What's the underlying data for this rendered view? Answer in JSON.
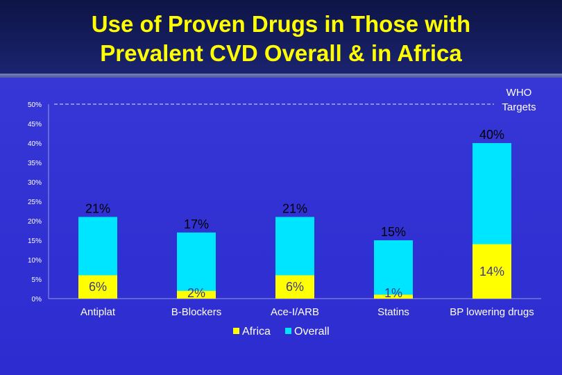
{
  "title_line1": "Use of Proven Drugs in Those with",
  "title_line2": "Prevalent CVD Overall & in Africa",
  "colors": {
    "overall": "#00e5ff",
    "africa": "#ffff00",
    "target": "#e0e0ff"
  },
  "chart_data": {
    "type": "bar",
    "title": "Use of Proven Drugs in Those with Prevalent CVD Overall & in Africa",
    "categories": [
      "Antiplat",
      "B-Blockers",
      "Ace-I/ARB",
      "Statins",
      "BP lowering drugs"
    ],
    "series": [
      {
        "name": "Africa",
        "values": [
          6,
          2,
          6,
          1,
          14
        ],
        "labels": [
          "6%",
          "2%",
          "6%",
          "1%",
          "14%"
        ]
      },
      {
        "name": "Overall",
        "values": [
          21,
          17,
          21,
          15,
          40
        ],
        "labels": [
          "21%",
          "17%",
          "21%",
          "15%",
          "40%"
        ]
      }
    ],
    "ylim": [
      0,
      50
    ],
    "yticks": [
      "0%",
      "5%",
      "10%",
      "15%",
      "20%",
      "25%",
      "30%",
      "35%",
      "40%",
      "45%",
      "50%"
    ],
    "target": {
      "value": 50,
      "label_line1": "WHO",
      "label_line2": "Targets"
    },
    "legend": [
      "Africa",
      "Overall"
    ],
    "xlabel": "",
    "ylabel": ""
  }
}
